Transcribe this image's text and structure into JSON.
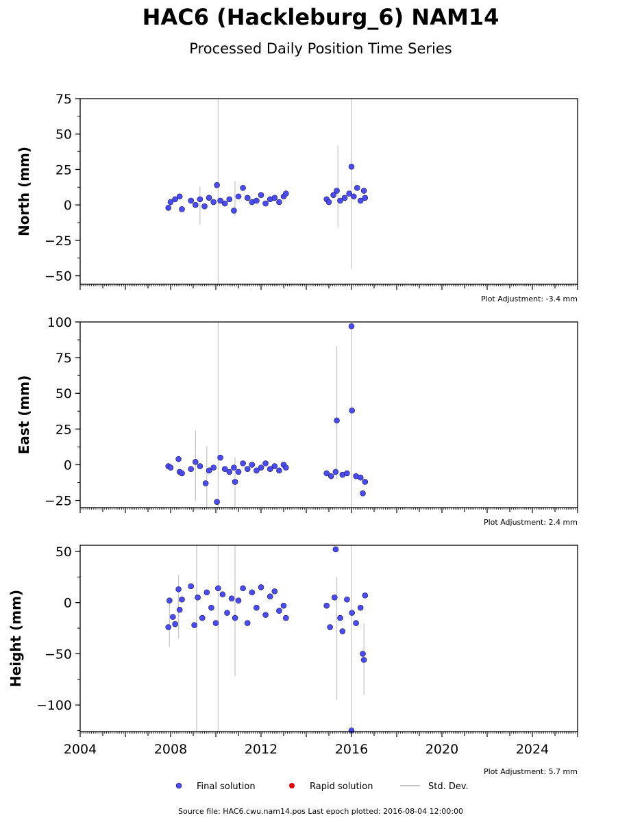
{
  "title": "HAC6 (Hackleburg_6) NAM14",
  "subtitle": "Processed Daily Position Time Series",
  "footer": "Source file: HAC6.cwu.nam14.pos  Last epoch plotted: 2016-08-04 12:00:00",
  "colors": {
    "final": "#4b4bf5",
    "rapid": "#e00000",
    "stddev": "#c8c8c8",
    "edge": "#1a1a4a"
  },
  "legend": [
    {
      "label": "Final solution",
      "kind": "final"
    },
    {
      "label": "Rapid solution",
      "kind": "rapid"
    },
    {
      "label": "Std. Dev.",
      "kind": "stddev"
    }
  ],
  "chart_data": [
    {
      "type": "scatter",
      "ylabel": "North (mm)",
      "ylim": [
        -56,
        75
      ],
      "yticks": [
        75,
        50,
        25,
        0,
        -25,
        -50
      ],
      "xlim": [
        2004,
        2026
      ],
      "adjustment": "Plot Adjustment: -3.4 mm",
      "series": [
        {
          "kind": "final",
          "x": [
            2007.9,
            2008.0,
            2008.2,
            2008.4,
            2008.5,
            2008.9,
            2009.1,
            2009.3,
            2009.5,
            2009.7,
            2009.9,
            2010.05,
            2010.2,
            2010.4,
            2010.6,
            2010.8,
            2011.0,
            2011.2,
            2011.4,
            2011.6,
            2011.8,
            2012.0,
            2012.2,
            2012.4,
            2012.6,
            2012.8,
            2013.0,
            2013.1,
            2014.9,
            2015.0,
            2015.2,
            2015.35,
            2015.5,
            2015.7,
            2015.9,
            2016.0,
            2016.1,
            2016.25,
            2016.4,
            2016.55,
            2016.6
          ],
          "y": [
            -2,
            2,
            4,
            6,
            -3,
            3,
            0,
            4,
            -1,
            5,
            2,
            14,
            3,
            1,
            4,
            -4,
            6,
            12,
            5,
            2,
            3,
            7,
            1,
            4,
            5,
            2,
            6,
            8,
            4,
            2,
            7,
            10,
            3,
            5,
            8,
            27,
            6,
            12,
            3,
            10,
            5
          ]
        }
      ],
      "errorbars": [
        {
          "x": 2010.1,
          "ylow": -56,
          "yhigh": 75
        },
        {
          "x": 2016.0,
          "ylow": -45,
          "yhigh": 75
        },
        {
          "x": 2015.4,
          "ylow": -16,
          "yhigh": 42
        },
        {
          "x": 2010.85,
          "ylow": -8,
          "yhigh": 17
        },
        {
          "x": 2009.3,
          "ylow": -14,
          "yhigh": 13
        }
      ]
    },
    {
      "type": "scatter",
      "ylabel": "East (mm)",
      "ylim": [
        -30,
        100
      ],
      "yticks": [
        100,
        75,
        50,
        25,
        0,
        -25
      ],
      "xlim": [
        2004,
        2026
      ],
      "adjustment": "Plot Adjustment: 2.4 mm",
      "series": [
        {
          "kind": "final",
          "x": [
            2007.9,
            2008.0,
            2008.35,
            2008.4,
            2008.5,
            2008.9,
            2009.1,
            2009.3,
            2009.55,
            2009.7,
            2009.9,
            2010.05,
            2010.2,
            2010.4,
            2010.6,
            2010.8,
            2010.85,
            2011.0,
            2011.2,
            2011.4,
            2011.6,
            2011.8,
            2012.0,
            2012.2,
            2012.4,
            2012.6,
            2012.8,
            2013.0,
            2013.1,
            2014.9,
            2015.1,
            2015.3,
            2015.35,
            2015.6,
            2015.8,
            2016.0,
            2016.02,
            2016.2,
            2016.4,
            2016.5,
            2016.6
          ],
          "y": [
            -1,
            -2,
            4,
            -5,
            -6,
            -3,
            2,
            -1,
            -13,
            -4,
            -2,
            -26,
            5,
            -3,
            -5,
            -2,
            -12,
            -5,
            1,
            -3,
            0,
            -4,
            -2,
            1,
            -3,
            -1,
            -4,
            0,
            -2,
            -6,
            -8,
            -5,
            31,
            -7,
            -6,
            97,
            38,
            -8,
            -9,
            -20,
            -12
          ]
        }
      ],
      "errorbars": [
        {
          "x": 2010.1,
          "ylow": -30,
          "yhigh": 100
        },
        {
          "x": 2016.0,
          "ylow": -30,
          "yhigh": 100
        },
        {
          "x": 2015.35,
          "ylow": -10,
          "yhigh": 83
        },
        {
          "x": 2009.1,
          "ylow": -25,
          "yhigh": 24
        },
        {
          "x": 2009.6,
          "ylow": -30,
          "yhigh": 13
        },
        {
          "x": 2010.85,
          "ylow": -30,
          "yhigh": 5
        }
      ]
    },
    {
      "type": "scatter",
      "ylabel": "Height (mm)",
      "ylim": [
        -126,
        56
      ],
      "yticks": [
        50,
        0,
        -50,
        -100
      ],
      "xlim": [
        2004,
        2026
      ],
      "xticks": [
        "2004",
        "2008",
        "2012",
        "2016",
        "2020",
        "2024"
      ],
      "adjustment": "Plot Adjustment: 5.7 mm",
      "series": [
        {
          "kind": "final",
          "x": [
            2007.9,
            2007.95,
            2008.1,
            2008.2,
            2008.35,
            2008.4,
            2008.5,
            2008.9,
            2009.05,
            2009.2,
            2009.4,
            2009.6,
            2009.8,
            2010.0,
            2010.1,
            2010.3,
            2010.5,
            2010.7,
            2010.85,
            2011.0,
            2011.2,
            2011.4,
            2011.6,
            2011.8,
            2012.0,
            2012.2,
            2012.4,
            2012.6,
            2012.8,
            2013.0,
            2013.1,
            2014.9,
            2015.05,
            2015.25,
            2015.3,
            2015.5,
            2015.6,
            2015.8,
            2016.0,
            2016.02,
            2016.2,
            2016.4,
            2016.5,
            2016.55,
            2016.6
          ],
          "y": [
            -24,
            2,
            -14,
            -21,
            13,
            -7,
            3,
            16,
            -22,
            5,
            -15,
            10,
            -5,
            -20,
            14,
            8,
            -10,
            4,
            -15,
            2,
            14,
            -20,
            10,
            -5,
            15,
            -12,
            6,
            11,
            -8,
            -3,
            -15,
            -3,
            -24,
            5,
            52,
            -15,
            -28,
            3,
            -125,
            -10,
            -20,
            -5,
            -50,
            -56,
            7
          ]
        }
      ],
      "errorbars": [
        {
          "x": 2009.15,
          "ylow": -126,
          "yhigh": 56
        },
        {
          "x": 2010.1,
          "ylow": -126,
          "yhigh": 56
        },
        {
          "x": 2016.0,
          "ylow": -126,
          "yhigh": 56
        },
        {
          "x": 2015.35,
          "ylow": -95,
          "yhigh": 25
        },
        {
          "x": 2010.85,
          "ylow": -72,
          "yhigh": 56
        },
        {
          "x": 2016.55,
          "ylow": -90,
          "yhigh": -20
        },
        {
          "x": 2007.95,
          "ylow": -43,
          "yhigh": 0
        },
        {
          "x": 2008.35,
          "ylow": -35,
          "yhigh": 27
        }
      ]
    }
  ]
}
